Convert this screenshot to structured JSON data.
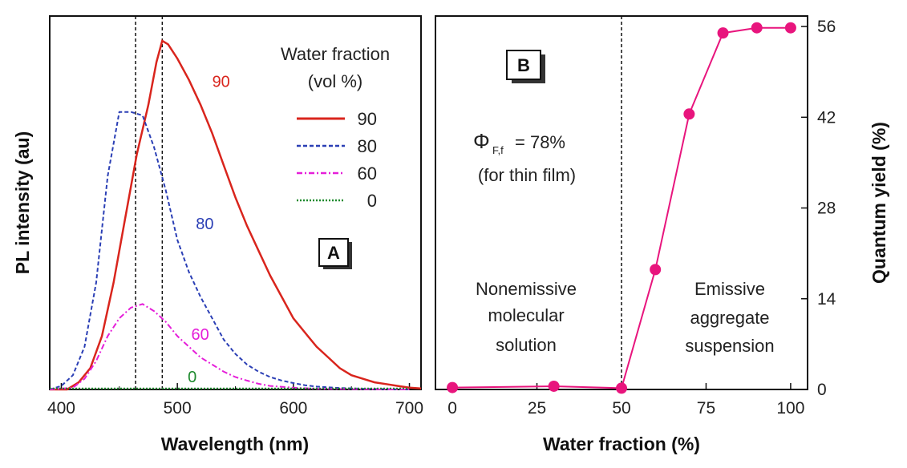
{
  "chart_data": [
    {
      "panel_tag": "A",
      "type": "line",
      "xlabel": "Wavelength (nm)",
      "ylabel": "PL intensity (au)",
      "xlim": [
        390,
        710
      ],
      "ylim": [
        0,
        100
      ],
      "xticks": [
        "400",
        "500",
        "600",
        "700"
      ],
      "yticks": [],
      "legend": {
        "title_line1": "Water fraction",
        "title_line2": "(vol %)",
        "position": "top-right"
      },
      "vlines": [
        464,
        487
      ],
      "series": [
        {
          "name": "90",
          "color": "#d9251d",
          "dash": "solid",
          "x": [
            390,
            405,
            415,
            425,
            435,
            445,
            455,
            465,
            475,
            482,
            487,
            492,
            500,
            510,
            520,
            530,
            540,
            550,
            560,
            570,
            580,
            590,
            600,
            610,
            620,
            630,
            640,
            650,
            660,
            670,
            680,
            690,
            700,
            710
          ],
          "y": [
            0,
            0,
            2,
            6,
            15,
            30,
            48,
            66,
            80,
            92,
            98,
            97,
            93,
            87,
            80,
            72,
            63,
            54,
            46,
            39,
            32,
            26,
            20,
            16,
            12,
            9,
            6,
            4,
            3,
            2,
            1.5,
            1,
            0.5,
            0.3
          ]
        },
        {
          "name": "80",
          "color": "#2b3fb5",
          "dash": "dashed",
          "x": [
            390,
            400,
            410,
            420,
            430,
            440,
            450,
            460,
            470,
            480,
            490,
            500,
            510,
            520,
            530,
            540,
            550,
            560,
            570,
            580,
            590,
            600,
            610,
            620,
            640,
            660,
            680,
            700
          ],
          "y": [
            0,
            1,
            4,
            12,
            30,
            60,
            78,
            78,
            77,
            68,
            56,
            42,
            33,
            26,
            20,
            14,
            10,
            7,
            5,
            3.5,
            2.5,
            1.8,
            1.2,
            0.8,
            0.4,
            0.2,
            0.1,
            0
          ]
        },
        {
          "name": "60",
          "color": "#e51fd9",
          "dash": "dashdot",
          "x": [
            390,
            410,
            420,
            430,
            440,
            450,
            460,
            470,
            480,
            490,
            500,
            510,
            520,
            530,
            540,
            550,
            560,
            570,
            580,
            600,
            620,
            650,
            680,
            700
          ],
          "y": [
            0,
            0.5,
            3,
            8,
            15,
            20,
            23,
            24,
            22,
            19,
            15,
            12,
            9,
            7,
            5,
            3.5,
            2.5,
            1.6,
            1,
            0.5,
            0.2,
            0.1,
            0,
            0
          ]
        },
        {
          "name": "0",
          "color": "#1e8a2e",
          "dash": "dotted",
          "x": [
            390,
            700
          ],
          "y": [
            0.3,
            0.3
          ]
        }
      ],
      "curve_labels": [
        {
          "text": "90",
          "x": 530,
          "y": 85,
          "color": "#d9251d"
        },
        {
          "text": "80",
          "x": 516,
          "y": 45,
          "color": "#2b3fb5"
        },
        {
          "text": "60",
          "x": 512,
          "y": 14,
          "color": "#e51fd9"
        },
        {
          "text": "0",
          "x": 509,
          "y": 2,
          "color": "#1e8a2e"
        }
      ]
    },
    {
      "panel_tag": "B",
      "type": "line",
      "xlabel": "Water fraction (%)",
      "ylabel": "Quantum yield (%)",
      "xlim": [
        -5,
        105
      ],
      "ylim": [
        0,
        57
      ],
      "xticks": [
        "0",
        "25",
        "50",
        "75",
        "100"
      ],
      "yticks": [
        "0",
        "14",
        "28",
        "42",
        "56"
      ],
      "vline": 50,
      "color": "#e8157d",
      "series": [
        {
          "name": "",
          "x": [
            0,
            30,
            50,
            60,
            70,
            80,
            90,
            100
          ],
          "y": [
            0.3,
            0.5,
            0.2,
            18.5,
            42.5,
            55,
            55.8,
            55.8
          ]
        }
      ],
      "annotations": {
        "phi_symbol": "Φ",
        "phi_subscript": "F,f",
        "phi_value": "= 78%",
        "phi_note": "(for thin film)",
        "left_region": [
          "Nonemissive",
          "molecular",
          "solution"
        ],
        "right_region": [
          "Emissive",
          "aggregate",
          "suspension"
        ]
      }
    }
  ]
}
